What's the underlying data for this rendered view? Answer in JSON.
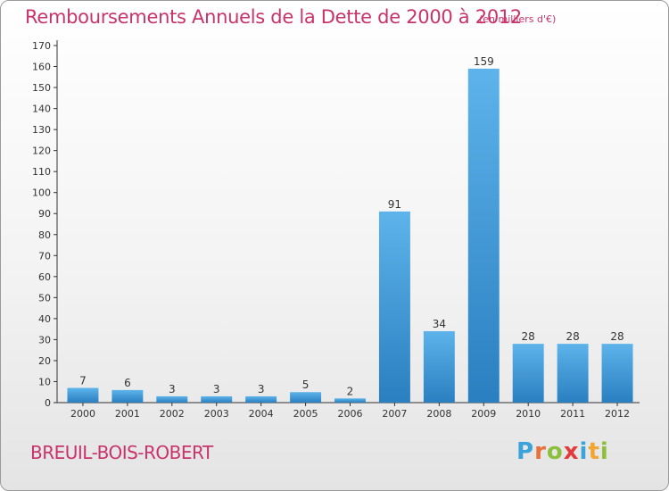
{
  "chart_data": {
    "type": "bar",
    "title": "Remboursements Annuels de la Dette de 2000 à 2012",
    "subtitle": "(en milliers d'€)",
    "categories": [
      "2000",
      "2001",
      "2002",
      "2003",
      "2004",
      "2005",
      "2006",
      "2007",
      "2008",
      "2009",
      "2010",
      "2011",
      "2012"
    ],
    "values": [
      7,
      6,
      3,
      3,
      3,
      5,
      2,
      91,
      34,
      159,
      28,
      28,
      28
    ],
    "data_labels": [
      "7",
      "6",
      "3",
      "3",
      "3",
      "5",
      "2",
      "91",
      "34",
      "159",
      "28",
      "28",
      "28"
    ],
    "y_ticks": [
      0,
      10,
      20,
      30,
      40,
      50,
      60,
      70,
      80,
      90,
      100,
      110,
      120,
      130,
      140,
      150,
      160,
      170
    ],
    "ylim": [
      0,
      170
    ],
    "xlabel": "",
    "ylabel": "",
    "grid": false,
    "legend": "none"
  },
  "footer": {
    "commune": "BREUIL-BOIS-ROBERT",
    "logo_letters": [
      "P",
      "r",
      "o",
      "x",
      "i",
      "t",
      "i"
    ],
    "logo_colors": [
      "#3aa3d9",
      "#e8703a",
      "#8cbf3c",
      "#e23b3b",
      "#3aa3d9",
      "#f0a630",
      "#8cbf3c"
    ]
  },
  "colors": {
    "accent_text": "#c8336a",
    "bar_top": "#5db3ea",
    "bar_bottom": "#2a7fc0",
    "axis": "#333333"
  }
}
